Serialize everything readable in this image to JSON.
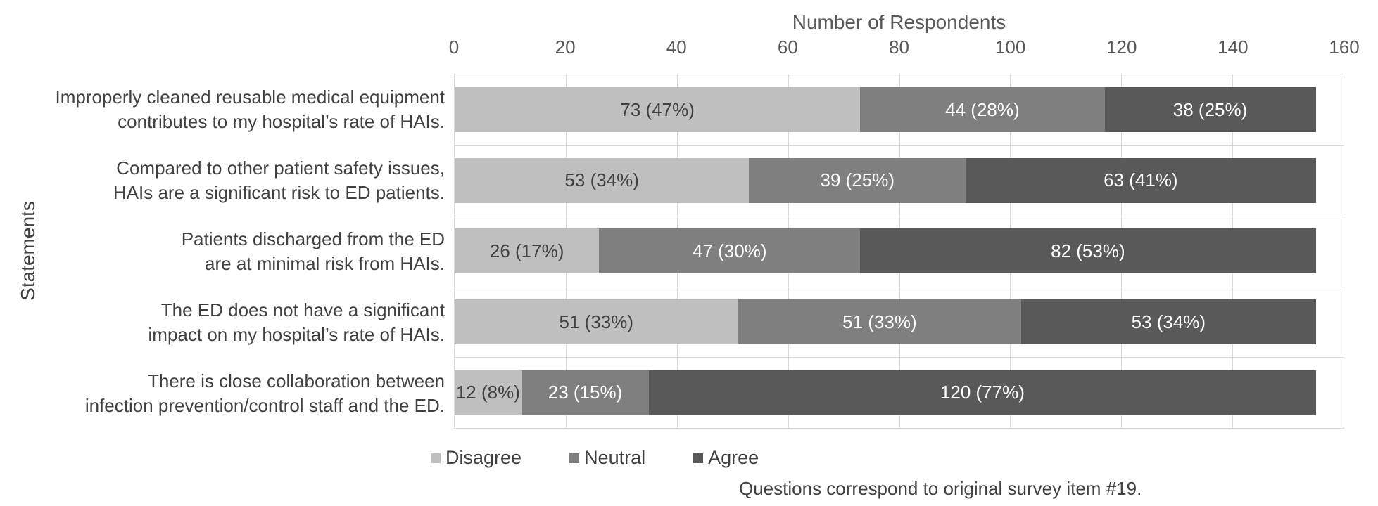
{
  "chart_data": {
    "type": "bar",
    "orientation": "horizontal",
    "stacked": true,
    "xlabel": "Number of Respondents",
    "ylabel": "Statements",
    "xlim": [
      0,
      160
    ],
    "xticks": [
      0,
      20,
      40,
      60,
      80,
      100,
      120,
      140,
      160
    ],
    "grid": true,
    "legend_position": "bottom",
    "footnote": "Questions correspond to original survey item #19.",
    "categories": [
      "Improperly cleaned reusable medical equipment\ncontributes to my hospital’s rate of HAIs.",
      "Compared to other patient safety issues,\nHAIs are a significant risk to ED patients.",
      "Patients discharged from the ED\nare at minimal risk from HAIs.",
      "The ED does not have a significant\nimpact on my hospital’s rate of HAIs.",
      "There is close collaboration between\ninfection prevention/control staff and the ED."
    ],
    "series": [
      {
        "name": "Disagree",
        "color": "#BFBFBF",
        "label_color": "#404040",
        "values": [
          73,
          53,
          26,
          51,
          12
        ],
        "labels": [
          "73 (47%)",
          "53 (34%)",
          "26 (17%)",
          "51 (33%)",
          "12 (8%)"
        ]
      },
      {
        "name": "Neutral",
        "color": "#7F7F7F",
        "label_color": "#FFFFFF",
        "values": [
          44,
          39,
          47,
          51,
          23
        ],
        "labels": [
          "44 (28%)",
          "39 (25%)",
          "47 (30%)",
          "51 (33%)",
          "23 (15%)"
        ]
      },
      {
        "name": "Agree",
        "color": "#595959",
        "label_color": "#FFFFFF",
        "values": [
          38,
          63,
          82,
          53,
          120
        ],
        "labels": [
          "38 (25%)",
          "63 (41%)",
          "82 (53%)",
          "53 (34%)",
          "120 (77%)"
        ]
      }
    ],
    "colors": {
      "gridline": "#D9D9D9",
      "axis_text": "#595959",
      "label_text": "#404040",
      "background": "#FFFFFF"
    }
  }
}
